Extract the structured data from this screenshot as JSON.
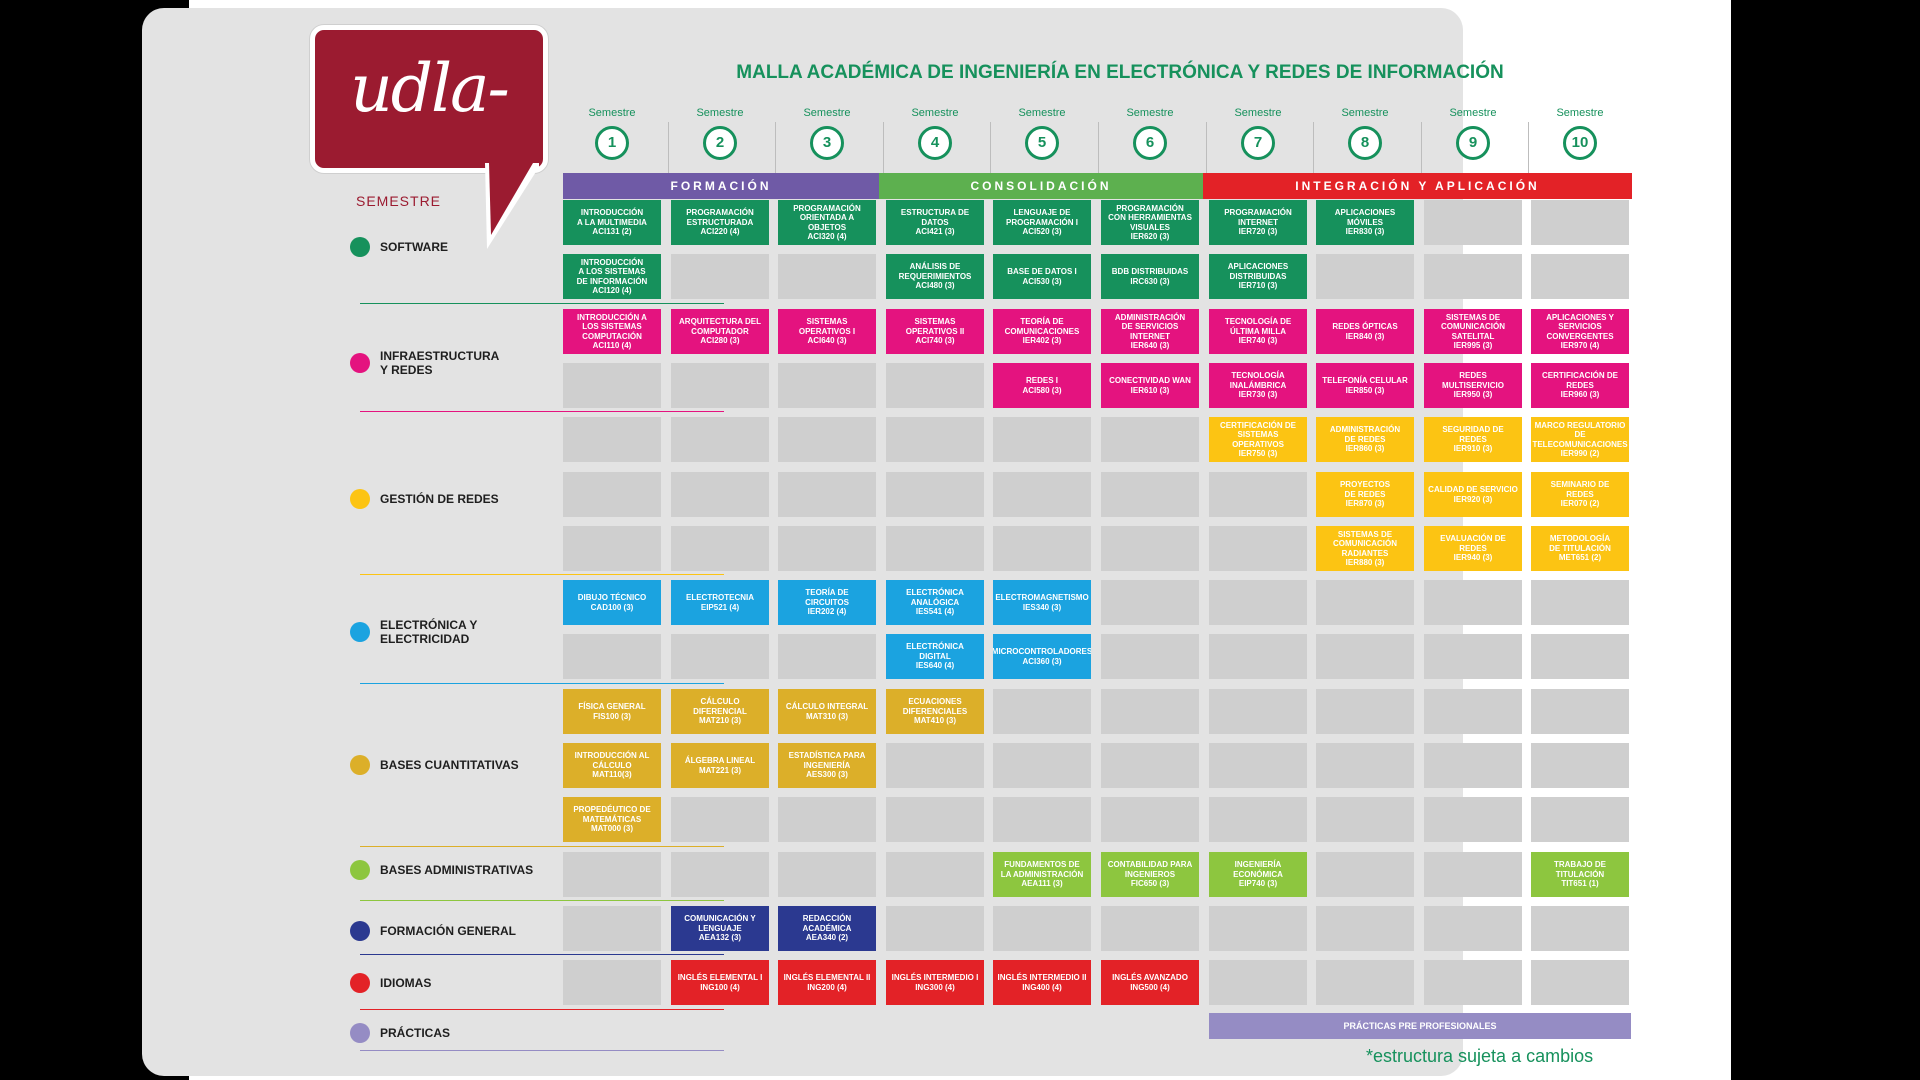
{
  "title": "MALLA ACADÉMICA DE INGENIERÍA EN ELECTRÓNICA Y REDES DE INFORMACIÓN",
  "logo_text": "udla-",
  "semester_label": "SEMESTRE",
  "semester_word": "Semestre",
  "semesters": [
    "1",
    "2",
    "3",
    "4",
    "5",
    "6",
    "7",
    "8",
    "9",
    "10"
  ],
  "phases": [
    {
      "label": "FORMACIÓN",
      "color": "#6f5aa6"
    },
    {
      "label": "CONSOLIDACIÓN",
      "color": "#5db04f"
    },
    {
      "label": "INTEGRACIÓN Y APLICACIÓN",
      "color": "#e32227"
    }
  ],
  "categories": [
    {
      "name": "SOFTWARE",
      "color": "#16915c",
      "rows": [
        [
          "INTRODUCCIÓN\nA LA MULTIMEDIA\nACI131 (2)",
          "PROGRAMACIÓN\nESTRUCTURADA\nACI220 (4)",
          "PROGRAMACIÓN\nORIENTADA A OBJETOS\nACI320 (4)",
          "ESTRUCTURA DE\nDATOS\nACI421 (3)",
          "LENGUAJE DE\nPROGRAMACIÓN I\nACI520 (3)",
          "PROGRAMACIÓN\nCON HERRAMIENTAS\nVISUALES\nIER620 (3)",
          "PROGRAMACIÓN\nINTERNET\nIER720 (3)",
          "APLICACIONES\nMÓVILES\nIER830 (3)",
          "",
          ""
        ],
        [
          "INTRODUCCIÓN\nA LOS SISTEMAS\nDE INFORMACIÓN\nACI120 (4)",
          "",
          "",
          "ANÁLISIS DE\nREQUERIMIENTOS\nACI480 (3)",
          "BASE DE DATOS I\nACI530 (3)",
          "BDB DISTRIBUIDAS\nIRC630 (3)",
          "APLICACIONES\nDISTRIBUIDAS\nIER710 (3)",
          "",
          "",
          ""
        ]
      ]
    },
    {
      "name": "INFRAESTRUCTURA\nY REDES",
      "color": "#e4137f",
      "rows": [
        [
          "INTRODUCCIÓN A\nLOS SISTEMAS\nCOMPUTACIÓN\nACI110 (4)",
          "ARQUITECTURA DEL\nCOMPUTADOR\nACI280 (3)",
          "SISTEMAS\nOPERATIVOS I\nACI640 (3)",
          "SISTEMAS\nOPERATIVOS II\nACI740 (3)",
          "TEORÍA DE\nCOMUNICACIONES\nIER402 (3)",
          "ADMINISTRACIÓN\nDE SERVICIOS\nINTERNET\nIER640 (3)",
          "TECNOLOGÍA DE\nÚLTIMA MILLA\nIER740 (3)",
          "REDES ÓPTICAS\nIER840 (3)",
          "SISTEMAS DE\nCOMUNICACIÓN SATELITAL\nIER995 (3)",
          "APLICACIONES Y\nSERVICIOS CONVERGENTES\nIER970 (4)"
        ],
        [
          "",
          "",
          "",
          "",
          "REDES I\nACI580 (3)",
          "CONECTIVIDAD WAN\nIER610 (3)",
          "TECNOLOGÍA\nINALÁMBRICA\nIER730 (3)",
          "TELEFONÍA CELULAR\nIER850 (3)",
          "REDES\nMULTISERVICIO\nIER950 (3)",
          "CERTIFICACIÓN DE\nREDES\nIER960 (3)"
        ]
      ]
    },
    {
      "name": "GESTIÓN DE REDES",
      "color": "#fcc413",
      "rows": [
        [
          "",
          "",
          "",
          "",
          "",
          "",
          "CERTIFICACIÓN DE\nSISTEMAS OPERATIVOS\nIER750 (3)",
          "ADMINISTRACIÓN\nDE REDES\nIER860 (3)",
          "SEGURIDAD DE\nREDES\nIER910 (3)",
          "MARCO REGULATORIO\nDE TELECOMUNICACIONES\nIER990 (2)"
        ],
        [
          "",
          "",
          "",
          "",
          "",
          "",
          "",
          "PROYECTOS\nDE REDES\nIER870 (3)",
          "CALIDAD DE SERVICIO\nIER920 (3)",
          "SEMINARIO DE\nREDES\nIER070 (2)"
        ],
        [
          "",
          "",
          "",
          "",
          "",
          "",
          "",
          "SISTEMAS DE\nCOMUNICACIÓN\nRADIANTES\nIER880 (3)",
          "EVALUACIÓN DE REDES\nIER940 (3)",
          "METODOLOGÍA\nDE TITULACIÓN\nMET651 (2)"
        ]
      ]
    },
    {
      "name": "ELECTRÓNICA Y\nELECTRICIDAD",
      "color": "#1ba3e0",
      "rows": [
        [
          "DIBUJO TÉCNICO\nCAD100 (3)",
          "ELECTROTECNIA\nEIP521 (4)",
          "TEORÍA DE\nCIRCUITOS\nIER202 (4)",
          "ELECTRÓNICA\nANALÓGICA\nIES541 (4)",
          "ELECTROMAGNETISMO\nIES340 (3)",
          "",
          "",
          "",
          "",
          ""
        ],
        [
          "",
          "",
          "",
          "ELECTRÓNICA\nDIGITAL\nIES640 (4)",
          "MICROCONTROLADORES\nACI360 (3)",
          "",
          "",
          "",
          "",
          ""
        ]
      ]
    },
    {
      "name": "BASES CUANTITATIVAS",
      "color": "#dcaf29",
      "rows": [
        [
          "FÍSICA GENERAL\nFIS100 (3)",
          "CÁLCULO\nDIFERENCIAL\nMAT210 (3)",
          "CÁLCULO INTEGRAL\nMAT310 (3)",
          "ECUACIONES\nDIFERENCIALES\nMAT410 (3)",
          "",
          "",
          "",
          "",
          "",
          ""
        ],
        [
          "INTRODUCCIÓN AL\nCÁLCULO\nMAT110(3)",
          "ÁLGEBRA LINEAL\nMAT221 (3)",
          "ESTADÍSTICA PARA\nINGENIERÍA\nAES300 (3)",
          "",
          "",
          "",
          "",
          "",
          "",
          ""
        ],
        [
          "PROPEDÉUTICO DE\nMATEMÁTICAS\nMAT000 (3)",
          "",
          "",
          "",
          "",
          "",
          "",
          "",
          "",
          ""
        ]
      ]
    },
    {
      "name": "BASES ADMINISTRATIVAS",
      "color": "#8dc63f",
      "rows": [
        [
          "",
          "",
          "",
          "",
          "FUNDAMENTOS DE\nLA ADMINISTRACIÓN\nAEA111 (3)",
          "CONTABILIDAD PARA\nINGENIEROS\nFIC650 (3)",
          "INGENIERÍA\nECONÓMICA\nEIP740 (3)",
          "",
          "",
          "TRABAJO DE\nTITULACIÓN\nTIT651 (1)"
        ]
      ]
    },
    {
      "name": "FORMACIÓN GENERAL",
      "color": "#2b3990",
      "rows": [
        [
          "",
          "COMUNICACIÓN Y\nLENGUAJE\nAEA132 (3)",
          "REDACCIÓN\nACADÉMICA\nAEA340 (2)",
          "",
          "",
          "",
          "",
          "",
          "",
          ""
        ]
      ]
    },
    {
      "name": "IDIOMAS",
      "color": "#e32227",
      "rows": [
        [
          "",
          "INGLÉS ELEMENTAL I\nING100 (4)",
          "INGLÉS ELEMENTAL II\nING200 (4)",
          "INGLÉS INTERMEDIO I\nING300 (4)",
          "INGLÉS INTERMEDIO II\nING400 (4)",
          "INGLÉS AVANZADO\nING500 (4)",
          "",
          "",
          "",
          ""
        ]
      ]
    },
    {
      "name": "PRÁCTICAS",
      "color": "#958cc4",
      "rows": []
    }
  ],
  "practicas_bar": "PRÁCTICAS PRE PROFESIONALES",
  "footnote": "*estructura sujeta a cambios"
}
